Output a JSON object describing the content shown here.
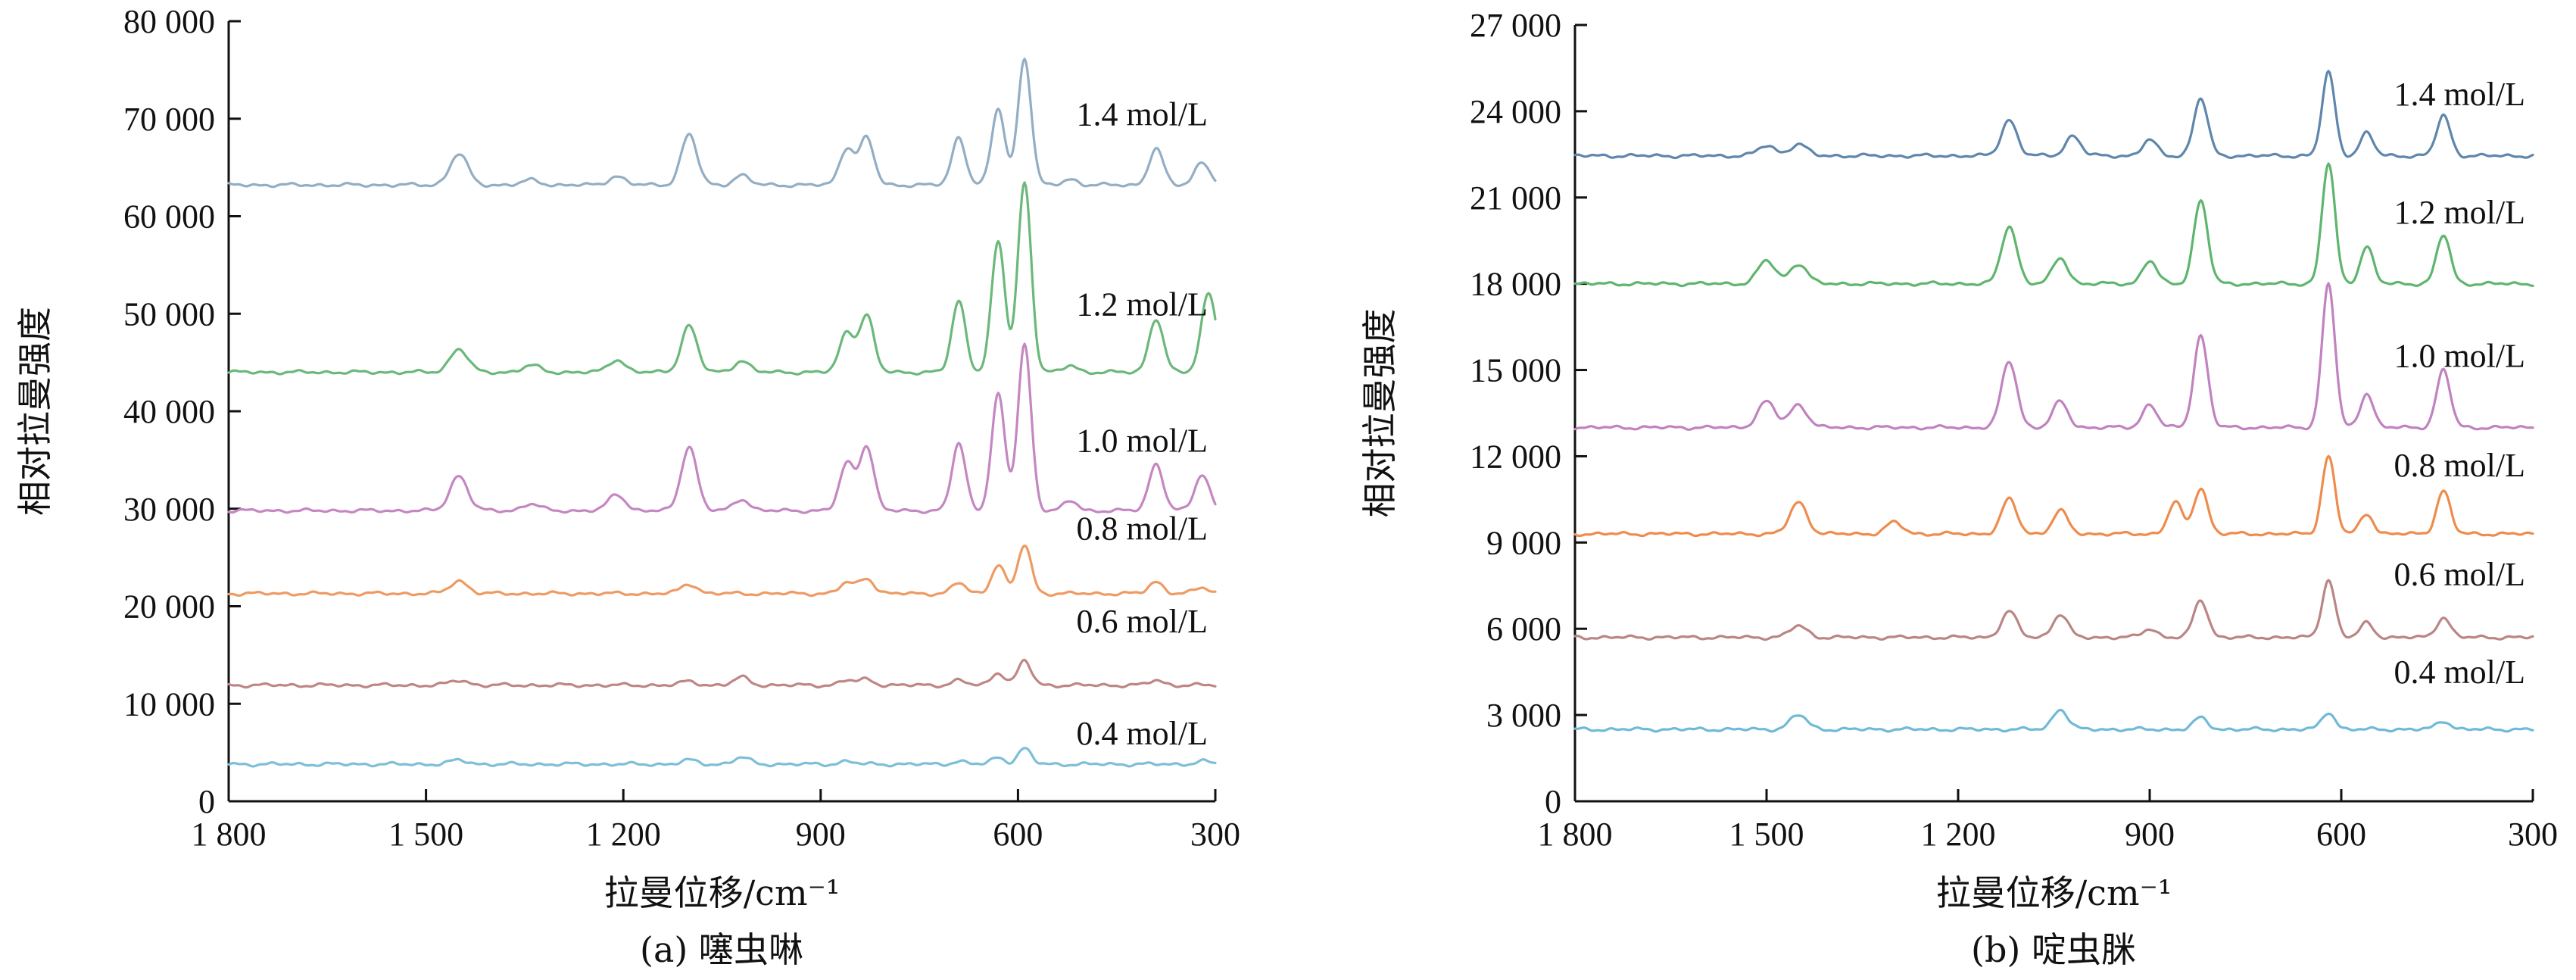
{
  "chart_data": [
    {
      "type": "line",
      "caption": "(a) 噻虫啉",
      "xlabel": "拉曼位移/cm⁻¹",
      "ylabel": "相对拉曼强度",
      "xlim": [
        1800,
        300
      ],
      "ylim": [
        0,
        80000
      ],
      "xticks": [
        1800,
        1500,
        1200,
        900,
        600,
        300
      ],
      "xtick_labels": [
        "1 800",
        "1 500",
        "1 200",
        "900",
        "600",
        "300"
      ],
      "yticks": [
        0,
        10000,
        20000,
        30000,
        40000,
        50000,
        60000,
        70000,
        80000
      ],
      "ytick_labels": [
        "0",
        "10 000",
        "20 000",
        "30 000",
        "40 000",
        "50 000",
        "60 000",
        "70 000",
        "80 000"
      ],
      "series": [
        {
          "name": "1.4 mol/L",
          "color": "#93aec4",
          "baseline": 63200,
          "label_y": 70500,
          "peaks": [
            [
              1450,
              3200
            ],
            [
              1340,
              500
            ],
            [
              1210,
              900
            ],
            [
              1100,
              5200
            ],
            [
              1020,
              1000
            ],
            [
              860,
              3800
            ],
            [
              830,
              4800
            ],
            [
              690,
              4900
            ],
            [
              630,
              7800
            ],
            [
              590,
              13000
            ],
            [
              520,
              600
            ],
            [
              390,
              3700
            ],
            [
              320,
              2400
            ]
          ]
        },
        {
          "name": "1.2 mol/L",
          "color": "#6bb87a",
          "baseline": 44000,
          "label_y": 51000,
          "peaks": [
            [
              1450,
              2400
            ],
            [
              1340,
              700
            ],
            [
              1210,
              1300
            ],
            [
              1100,
              4800
            ],
            [
              1020,
              1200
            ],
            [
              860,
              4100
            ],
            [
              830,
              5800
            ],
            [
              690,
              7300
            ],
            [
              630,
              13400
            ],
            [
              590,
              19500
            ],
            [
              520,
              700
            ],
            [
              390,
              5500
            ],
            [
              310,
              8200
            ]
          ]
        },
        {
          "name": "1.0 mol/L",
          "color": "#c587c1",
          "baseline": 29800,
          "label_y": 37000,
          "peaks": [
            [
              1450,
              3600
            ],
            [
              1340,
              700
            ],
            [
              1210,
              1700
            ],
            [
              1100,
              6600
            ],
            [
              1020,
              1200
            ],
            [
              860,
              4800
            ],
            [
              830,
              6600
            ],
            [
              690,
              6900
            ],
            [
              630,
              11900
            ],
            [
              590,
              17000
            ],
            [
              520,
              1000
            ],
            [
              390,
              4800
            ],
            [
              320,
              3700
            ]
          ]
        },
        {
          "name": "0.8 mol/L",
          "color": "#ee9b63",
          "baseline": 21300,
          "label_y": 28000,
          "peaks": [
            [
              1450,
              1300
            ],
            [
              1100,
              1000
            ],
            [
              860,
              1100
            ],
            [
              830,
              1600
            ],
            [
              690,
              1100
            ],
            [
              630,
              3000
            ],
            [
              590,
              5000
            ],
            [
              390,
              1200
            ],
            [
              320,
              600
            ]
          ]
        },
        {
          "name": "0.6 mol/L",
          "color": "#bf8685",
          "baseline": 11900,
          "label_y": 18500,
          "peaks": [
            [
              1450,
              500
            ],
            [
              1100,
              400
            ],
            [
              1020,
              800
            ],
            [
              860,
              500
            ],
            [
              830,
              600
            ],
            [
              690,
              500
            ],
            [
              630,
              1300
            ],
            [
              590,
              2500
            ],
            [
              390,
              500
            ]
          ]
        },
        {
          "name": "0.4 mol/L",
          "color": "#7dbfd8",
          "baseline": 3800,
          "label_y": 7000,
          "peaks": [
            [
              1450,
              400
            ],
            [
              1100,
              400
            ],
            [
              1020,
              700
            ],
            [
              860,
              300
            ],
            [
              690,
              300
            ],
            [
              630,
              700
            ],
            [
              590,
              1600
            ],
            [
              320,
              300
            ]
          ]
        }
      ]
    },
    {
      "type": "line",
      "caption": "(b) 啶虫脒",
      "xlabel": "拉曼位移/cm⁻¹",
      "ylabel": "相对拉曼强度",
      "xlim": [
        1800,
        300
      ],
      "ylim": [
        0,
        27000
      ],
      "xticks": [
        1800,
        1500,
        1200,
        900,
        600,
        300
      ],
      "xtick_labels": [
        "1 800",
        "1 500",
        "1 200",
        "900",
        "600",
        "300"
      ],
      "yticks": [
        0,
        3000,
        6000,
        9000,
        12000,
        15000,
        18000,
        21000,
        24000,
        27000
      ],
      "ytick_labels": [
        "0",
        "3 000",
        "6 000",
        "9 000",
        "12 000",
        "15 000",
        "18 000",
        "21 000",
        "24 000",
        "27 000"
      ],
      "series": [
        {
          "name": "1.4 mol/L",
          "color": "#5f86ab",
          "baseline": 22450,
          "label_y": 24600,
          "peaks": [
            [
              1500,
              350
            ],
            [
              1450,
              400
            ],
            [
              1120,
              1250
            ],
            [
              1020,
              700
            ],
            [
              900,
              550
            ],
            [
              820,
              2000
            ],
            [
              620,
              2900
            ],
            [
              560,
              800
            ],
            [
              440,
              1400
            ]
          ]
        },
        {
          "name": "1.2 mol/L",
          "color": "#5fb56e",
          "baseline": 18000,
          "label_y": 20500,
          "peaks": [
            [
              1500,
              800
            ],
            [
              1450,
              700
            ],
            [
              1120,
              2000
            ],
            [
              1040,
              900
            ],
            [
              900,
              800
            ],
            [
              820,
              2900
            ],
            [
              620,
              4200
            ],
            [
              560,
              1300
            ],
            [
              440,
              1700
            ]
          ]
        },
        {
          "name": "1.0 mol/L",
          "color": "#c083c0",
          "baseline": 13000,
          "label_y": 15500,
          "peaks": [
            [
              1500,
              900
            ],
            [
              1450,
              800
            ],
            [
              1120,
              2300
            ],
            [
              1040,
              900
            ],
            [
              900,
              800
            ],
            [
              820,
              3200
            ],
            [
              620,
              5000
            ],
            [
              560,
              1200
            ],
            [
              440,
              2000
            ]
          ]
        },
        {
          "name": "0.8 mol/L",
          "color": "#ee8c4e",
          "baseline": 9300,
          "label_y": 11700,
          "peaks": [
            [
              1450,
              1100
            ],
            [
              1300,
              400
            ],
            [
              1120,
              1200
            ],
            [
              1040,
              800
            ],
            [
              860,
              1100
            ],
            [
              820,
              1600
            ],
            [
              620,
              2700
            ],
            [
              560,
              700
            ],
            [
              440,
              1500
            ]
          ]
        },
        {
          "name": "0.6 mol/L",
          "color": "#b98685",
          "baseline": 5700,
          "label_y": 7900,
          "peaks": [
            [
              1450,
              400
            ],
            [
              1120,
              900
            ],
            [
              1040,
              800
            ],
            [
              900,
              300
            ],
            [
              820,
              1300
            ],
            [
              620,
              2000
            ],
            [
              560,
              500
            ],
            [
              440,
              700
            ]
          ]
        },
        {
          "name": "0.4 mol/L",
          "color": "#6fbad6",
          "baseline": 2500,
          "label_y": 4500,
          "peaks": [
            [
              1450,
              500
            ],
            [
              1040,
              700
            ],
            [
              820,
              400
            ],
            [
              620,
              600
            ],
            [
              440,
              300
            ]
          ]
        }
      ]
    }
  ]
}
